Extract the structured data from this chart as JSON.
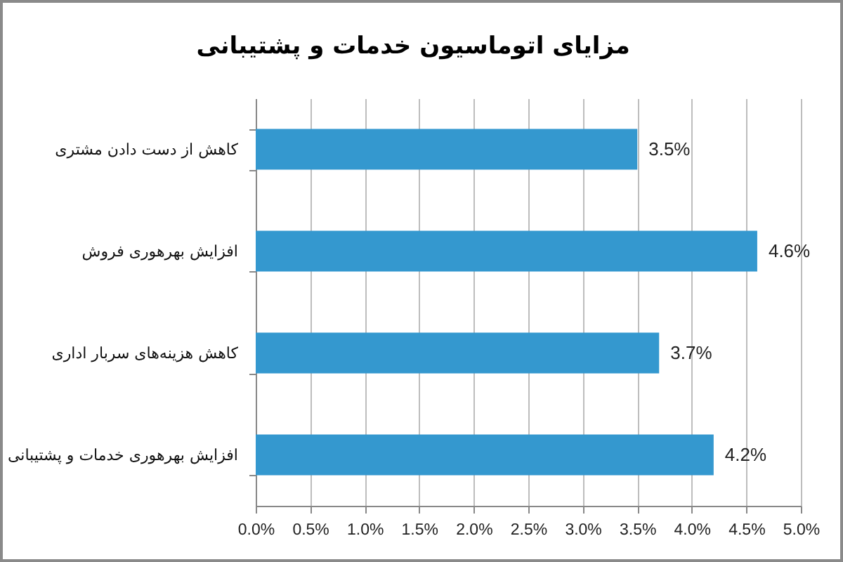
{
  "chart_data": {
    "type": "bar",
    "title": "مزایای اتوماسیون خدمات و پشتیبانی",
    "orientation": "horizontal",
    "categories": [
      "کاهش از دست دادن مشتری",
      "افزایش بهرهوری فروش",
      "کاهش هزینه‌های سربار اداری",
      "افزایش بهرهوری خدمات و پشتیبانی"
    ],
    "values": [
      3.5,
      4.6,
      3.7,
      4.2
    ],
    "value_labels": [
      "3.5%",
      "4.6%",
      "3.7%",
      "4.2%"
    ],
    "color": "#3498cf",
    "xlim": [
      0,
      5
    ],
    "xticks": [
      {
        "value": 0,
        "label": "0.0%"
      },
      {
        "value": 0.5,
        "label": "0.5%"
      },
      {
        "value": 1,
        "label": "1.0%"
      },
      {
        "value": 1.5,
        "label": "1.5%"
      },
      {
        "value": 2,
        "label": "2.0%"
      },
      {
        "value": 2.5,
        "label": "2.5%"
      },
      {
        "value": 3,
        "label": "3.0%"
      },
      {
        "value": 3.5,
        "label": "3.5%"
      },
      {
        "value": 4,
        "label": "4.0%"
      },
      {
        "value": 4.5,
        "label": "4.5%"
      },
      {
        "value": 5,
        "label": "5.0%"
      }
    ],
    "grid": "x"
  }
}
